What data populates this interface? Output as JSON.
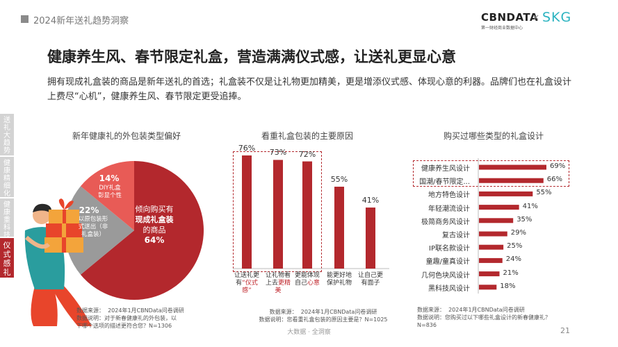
{
  "header": {
    "section": "2024新年送礼趋势洞察",
    "logo_main": "CBNDATA",
    "logo_sub": "第一财经商业数据中心",
    "logo_x": "×",
    "logo_partner": "SKG"
  },
  "title": "健康养生风、春节限定礼盒，营造满满仪式感，让送礼更显心意",
  "intro": "拥有现成礼盒装的商品是新年送礼的首选；礼盒装不仅是让礼物更加精美，更是增添仪式感、体现心意的利器。品牌们也在礼盒设计上费尽“心机”，健康养生风、春节限定更受追捧。",
  "side_tabs": [
    "送礼大趋势",
    "健康精细化",
    "健康重科技",
    "仪式感礼盒"
  ],
  "colors": {
    "accent": "#b3282d",
    "pie_light": "#e85b56",
    "pie_gray": "#9a9a9a",
    "tab_gray": "#d3d3d3"
  },
  "icons": [
    "gift-person-illustration"
  ],
  "chart1": {
    "title": "新年健康礼的外包装类型偏好",
    "labels": {
      "a_val": "14%",
      "a_txt": "DIY礼盒\n彰显个性",
      "b_val": "22%",
      "b_txt": "以原包装形\n式送出（非\n礼盒装）",
      "c_txt1": "倾向购买有",
      "c_txt2": "现成礼盒装",
      "c_txt3": "的商品",
      "c_val": "64%"
    },
    "note": "数据来源：  2024年1月CBNData问卷调研\n数据说明：对于新春健康礼的外包装，以\n下哪个选项的描述更符合您？N=1306"
  },
  "chart2": {
    "title": "看重礼盒包装的主要原因",
    "note": "数据来源：  2024年1月CBNData问卷调研\n数据说明：您看重礼盒包装的原因主要是？N=1025"
  },
  "chart3": {
    "title": "购买过哪些类型的礼盒设计",
    "note": "数据来源：  2024年1月CBNData问卷调研\n数据说明：您购买过以下哪些礼盒设计的新春健康礼？\nN=836"
  },
  "chart_data": [
    {
      "type": "pie",
      "title": "新年健康礼的外包装类型偏好",
      "categories": [
        "倾向购买有现成礼盒装的商品",
        "以原包装形式送出（非礼盒装）",
        "DIY礼盒彰显个性"
      ],
      "values": [
        64,
        22,
        14
      ],
      "unit": "%"
    },
    {
      "type": "bar",
      "title": "看重礼盒包装的主要原因",
      "categories": [
        [
          "让送礼更",
          "有",
          "“仪式",
          "感”"
        ],
        [
          "让礼物看",
          "上去",
          "更精",
          "美"
        ],
        [
          "更能体现",
          "自己",
          "心意"
        ],
        [
          "能更好地",
          "保护礼物"
        ],
        [
          "让自己更",
          "有面子"
        ]
      ],
      "highlight": [
        0,
        1,
        2
      ],
      "values": [
        76,
        73,
        72,
        55,
        41
      ],
      "value_labels": [
        "76%",
        "73%",
        "72%",
        "55%",
        "41%"
      ],
      "ylim": [
        0,
        100
      ]
    },
    {
      "type": "bar",
      "orientation": "horizontal",
      "title": "购买过哪些类型的礼盒设计",
      "categories": [
        "健康养生风设计",
        "国潮/春节限定...",
        "地方特色设计",
        "年轻潮流设计",
        "极简商务风设计",
        "复古设计",
        "IP联名款设计",
        "童趣/童真设计",
        "几何色块风设计",
        "黑科技风设计"
      ],
      "values": [
        69,
        66,
        55,
        41,
        35,
        29,
        25,
        24,
        21,
        18
      ],
      "value_labels": [
        "69%",
        "66%",
        "55%",
        "41%",
        "35%",
        "29%",
        "25%",
        "24%",
        "21%",
        "18%"
      ],
      "highlight": [
        0,
        1
      ],
      "xlim": [
        0,
        75
      ]
    }
  ],
  "footer": "大数据 · 全洞察",
  "page_number": "21"
}
